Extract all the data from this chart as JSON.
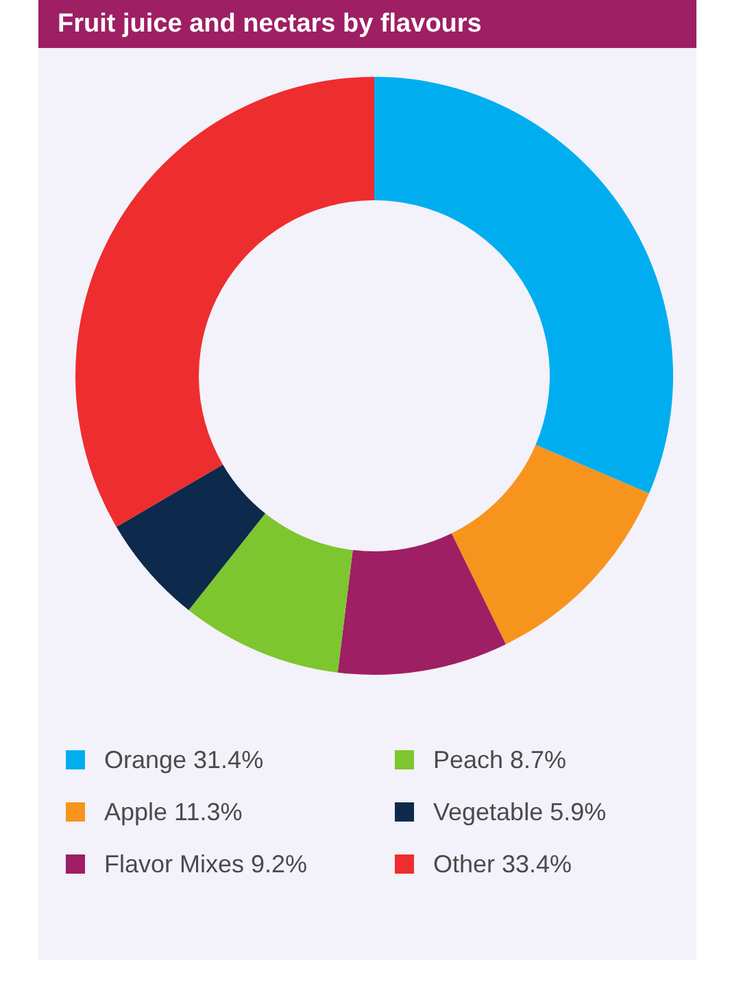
{
  "chart_data": {
    "type": "donut",
    "title": "Fruit juice and nectars by flavours",
    "categories": [
      "Orange",
      "Apple",
      "Flavor Mixes",
      "Peach",
      "Vegetable",
      "Other"
    ],
    "values": [
      31.4,
      11.3,
      9.2,
      8.7,
      5.9,
      33.4
    ],
    "value_labels": [
      "31.4%",
      "11.3%",
      "9.2%",
      "8.7%",
      "5.9%",
      "33.4%"
    ],
    "colors": [
      "#00aeef",
      "#f7941d",
      "#9e1f63",
      "#7dc62f",
      "#0d2a4c",
      "#ee2d2f"
    ],
    "legend": "bottom"
  }
}
